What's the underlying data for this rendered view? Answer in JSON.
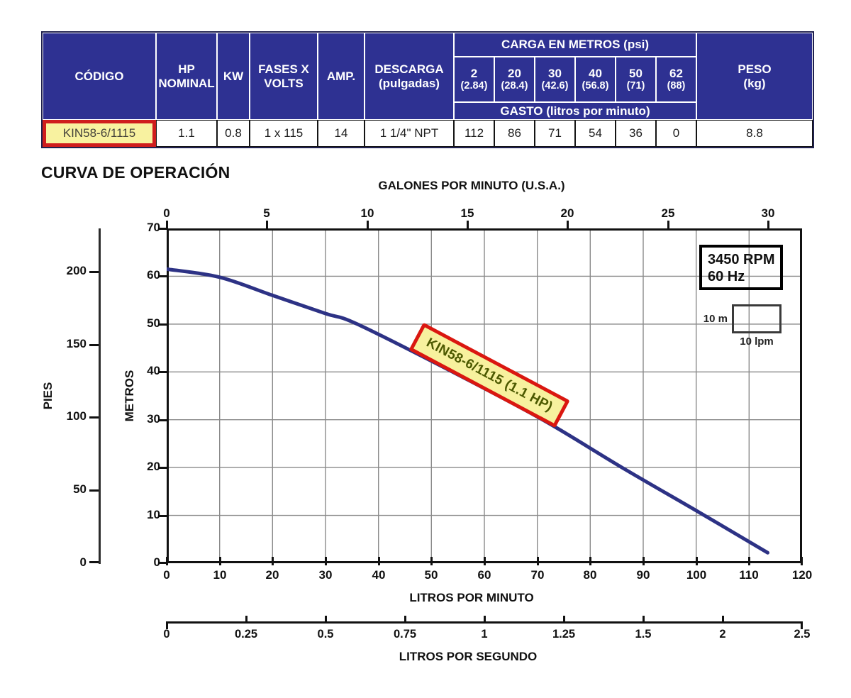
{
  "table": {
    "headers": {
      "codigo": "CÓDIGO",
      "hp_line1": "HP",
      "hp_line2": "NOMINAL",
      "kw": "KW",
      "fases_line1": "FASES X",
      "fases_line2": "VOLTS",
      "amp": "AMP.",
      "descarga_line1": "DESCARGA",
      "descarga_line2": "(pulgadas)",
      "carga_title": "CARGA EN METROS (psi)",
      "carga_cols": [
        {
          "head": "2",
          "psi": "(2.84)"
        },
        {
          "head": "20",
          "psi": "(28.4)"
        },
        {
          "head": "30",
          "psi": "(42.6)"
        },
        {
          "head": "40",
          "psi": "(56.8)"
        },
        {
          "head": "50",
          "psi": "(71)"
        },
        {
          "head": "62",
          "psi": "(88)"
        }
      ],
      "gasto_title": "GASTO (litros por minuto)",
      "peso_line1": "PESO",
      "peso_line2": "(kg)"
    },
    "row": {
      "codigo": "KIN58-6/1115",
      "hp": "1.1",
      "kw": "0.8",
      "fases": "1 x 115",
      "amp": "14",
      "descarga": "1 1/4\" NPT",
      "gasto": [
        "112",
        "86",
        "71",
        "54",
        "36",
        "0"
      ],
      "peso": "8.8"
    },
    "colors": {
      "header_bg": "#2e3192",
      "highlight_bg": "#f8f2a0",
      "highlight_border": "#cf1d1d"
    }
  },
  "chart_data": {
    "type": "line",
    "title": "CURVA DE OPERACIÓN",
    "grid": true,
    "top_axis": {
      "label": "GALONES POR MINUTO (U.S.A.)",
      "ticks": [
        "0",
        "5",
        "10",
        "15",
        "20",
        "25",
        "30"
      ],
      "range_gpm": [
        0,
        30
      ]
    },
    "x_axis": {
      "label": "LITROS POR MINUTO",
      "ticks": [
        "0",
        "10",
        "20",
        "30",
        "40",
        "50",
        "60",
        "70",
        "80",
        "90",
        "100",
        "110",
        "120"
      ],
      "range": [
        0,
        120
      ]
    },
    "x_axis2": {
      "label": "LITROS POR SEGUNDO",
      "ticks": [
        "0",
        "0.25",
        "0.5",
        "0.75",
        "1",
        "1.25",
        "1.5",
        "2",
        "2.5"
      ]
    },
    "y_axis": {
      "label": "METROS",
      "ticks": [
        "70",
        "60",
        "50",
        "40",
        "30",
        "20",
        "10",
        "0"
      ],
      "range": [
        0,
        70
      ]
    },
    "y_axis2": {
      "label": "PIES",
      "ticks": [
        "200",
        "150",
        "100",
        "50",
        "0"
      ],
      "range": [
        0,
        229.6
      ]
    },
    "series": [
      {
        "name": "KIN58-6/1115 (1.1 HP)",
        "color": "#2d3285",
        "points_lpm_m": [
          [
            0,
            61.5
          ],
          [
            10,
            59.8
          ],
          [
            20,
            56.0
          ],
          [
            30,
            52.2
          ],
          [
            36,
            50
          ],
          [
            54,
            40
          ],
          [
            71,
            30
          ],
          [
            86,
            20
          ],
          [
            100,
            11
          ],
          [
            113.5,
            2.2
          ]
        ]
      }
    ],
    "table_points_head_m_vs_lpm": {
      "head_m": [
        2,
        20,
        30,
        40,
        50,
        62
      ],
      "gasto_lpm": [
        112,
        86,
        71,
        54,
        36,
        0
      ]
    },
    "annotations": {
      "rpm": "3450 RPM",
      "hz": "60 Hz",
      "scale_vertical": "10 m",
      "scale_horizontal": "10 lpm"
    }
  }
}
